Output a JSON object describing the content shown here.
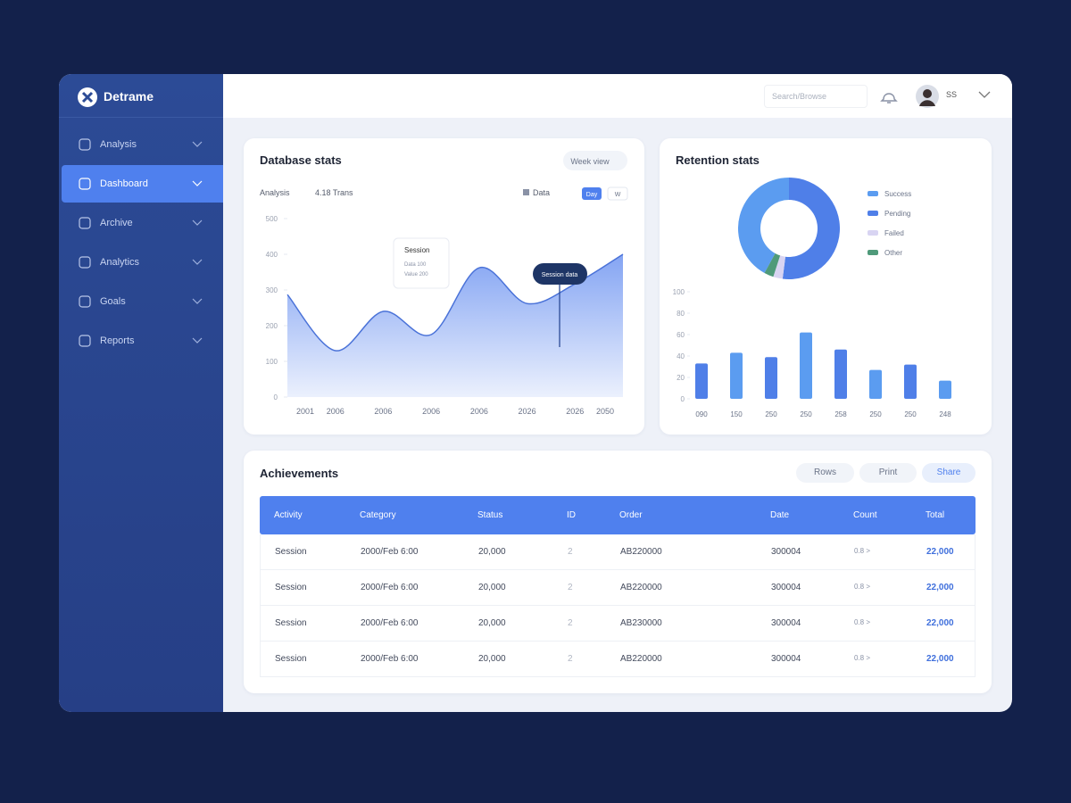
{
  "sidebar": {
    "brand": "Detrame",
    "nav": [
      "Analysis",
      "Dashboard",
      "Archive",
      "Analytics",
      "Goals",
      "Reports"
    ],
    "active": 1
  },
  "header": {
    "search": "Search/Browse",
    "user": "SS"
  },
  "area_chart": {
    "type": "area",
    "title": "Database stats",
    "button": "Week view",
    "subtitle": "Analysis",
    "summary": "4.18 Trans",
    "legend": "Data",
    "toggles": [
      "Day",
      "W"
    ],
    "categories": [
      "2001",
      "2006",
      "2006",
      "2006",
      "2006",
      "2026",
      "2026",
      "2050"
    ],
    "values": [
      287,
      130,
      240,
      175,
      362,
      262,
      317,
      400
    ],
    "ylim": [
      0,
      500
    ],
    "yticks": [
      0,
      100,
      200,
      300,
      400,
      500
    ],
    "color": "#5b86ef",
    "tooltip": {
      "title": "Session",
      "lines": [
        "Data 100",
        "Value 200"
      ]
    },
    "callout": "Session data"
  },
  "donut_chart": {
    "type": "pie",
    "title": "Retention stats",
    "categories": [
      "Success",
      "Pending",
      "Failed",
      "Other"
    ],
    "values": [
      42,
      52,
      3,
      3
    ],
    "colors": [
      "#5b9cf0",
      "#4f7fe8",
      "#d8d4f2",
      "#4f9a7a"
    ]
  },
  "bar_chart": {
    "type": "bar",
    "categories": [
      "090",
      "150",
      "250",
      "250",
      "258",
      "250",
      "250",
      "248"
    ],
    "values": [
      33,
      43,
      39,
      62,
      46,
      27,
      32,
      17
    ],
    "ylim": [
      0,
      100
    ],
    "yticks": [
      0,
      20,
      40,
      60,
      80,
      100
    ],
    "colors": [
      "#4f7fe8",
      "#5b9cf0"
    ]
  },
  "table": {
    "title": "Achievements",
    "buttons": [
      "Rows",
      "Print",
      "Share"
    ],
    "columns": [
      "Activity",
      "Category",
      "Status",
      "ID",
      "Order",
      "Date",
      "Count",
      "Total"
    ],
    "rows": [
      [
        "Session",
        "2000/Feb 6:00",
        "20,000",
        "2",
        "AB220000",
        "300004",
        "0.8 >",
        "22,000"
      ],
      [
        "Session",
        "2000/Feb 6:00",
        "20,000",
        "2",
        "AB220000",
        "300004",
        "0.8 >",
        "22,000"
      ],
      [
        "Session",
        "2000/Feb 6:00",
        "20,000",
        "2",
        "AB230000",
        "300004",
        "0.8 >",
        "22,000"
      ],
      [
        "Session",
        "2000/Feb 6:00",
        "20,000",
        "2",
        "AB220000",
        "300004",
        "0.8 >",
        "22,000"
      ]
    ]
  }
}
